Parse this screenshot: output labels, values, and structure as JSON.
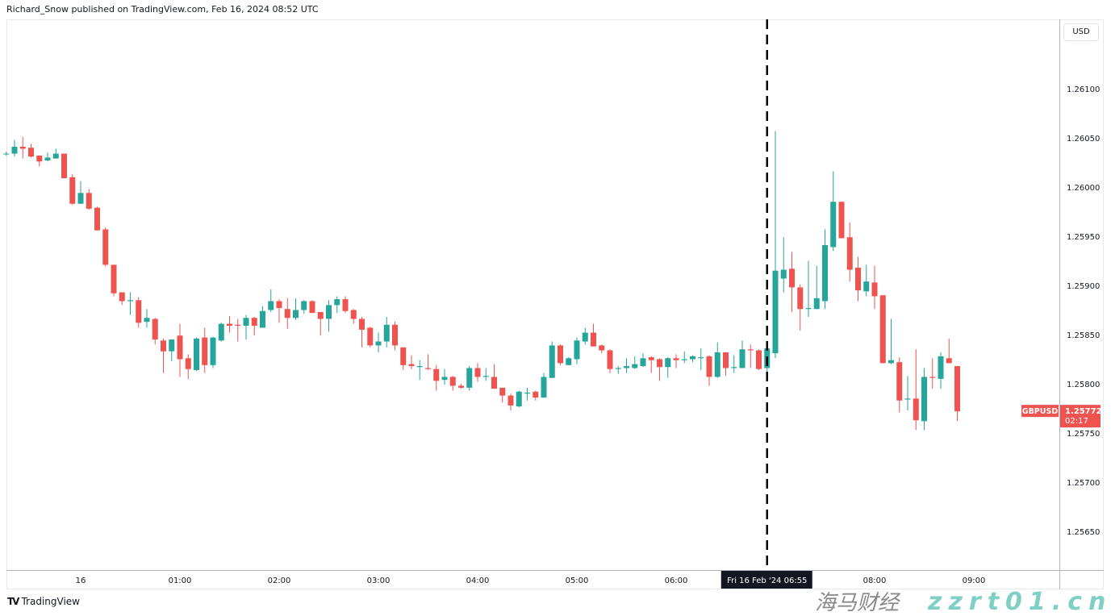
{
  "header": {
    "publisher": "Richard_Snow published on TradingView.com, Feb 16, 2024 08:52 UTC"
  },
  "currency_button": "USD",
  "footer": {
    "logo_text": "TradingView"
  },
  "watermark": {
    "text": "海马财经",
    "url": "zzrt01.cn"
  },
  "colors": {
    "up": "#26a69a",
    "down": "#ef5350",
    "crosshair": "#000000"
  },
  "chart_data": {
    "type": "candlestick",
    "symbol": "GBPUSD",
    "interval": "5m",
    "last_price": "1.25772",
    "countdown": "02:17",
    "crosshair_label": "Fri 16 Feb '24   06:55",
    "crosshair_time": "06:55",
    "y_ticks": [
      "1.26100",
      "1.26050",
      "1.26000",
      "1.25950",
      "1.25900",
      "1.25850",
      "1.25800",
      "1.25750",
      "1.25700",
      "1.25650"
    ],
    "x_ticks": [
      {
        "label": "16",
        "time": "00:00"
      },
      {
        "label": "01:00",
        "time": "01:00"
      },
      {
        "label": "02:00",
        "time": "02:00"
      },
      {
        "label": "03:00",
        "time": "03:00"
      },
      {
        "label": "04:00",
        "time": "04:00"
      },
      {
        "label": "05:00",
        "time": "05:00"
      },
      {
        "label": "06:00",
        "time": "06:00"
      },
      {
        "label": "08:00",
        "time": "08:00"
      },
      {
        "label": "09:00",
        "time": "09:00"
      }
    ],
    "candles_columns": [
      "time",
      "open",
      "high",
      "low",
      "close"
    ],
    "candles": [
      [
        "23:15",
        1.26034,
        1.26036,
        1.26032,
        1.26034
      ],
      [
        "23:20",
        1.26034,
        1.26048,
        1.26031,
        1.26041
      ],
      [
        "23:25",
        1.26041,
        1.26051,
        1.26029,
        1.26039
      ],
      [
        "23:30",
        1.2604,
        1.26044,
        1.2603,
        1.26031
      ],
      [
        "23:35",
        1.26032,
        1.26032,
        1.26021,
        1.26026
      ],
      [
        "23:40",
        1.26027,
        1.26035,
        1.26026,
        1.2603
      ],
      [
        "23:45",
        1.26029,
        1.26039,
        1.26029,
        1.26034
      ],
      [
        "23:50",
        1.26034,
        1.26034,
        1.26009,
        1.26009
      ],
      [
        "23:55",
        1.2601,
        1.26013,
        1.25982,
        1.25983
      ],
      [
        "00:00",
        1.25983,
        1.26006,
        1.25983,
        1.25994
      ],
      [
        "00:05",
        1.25994,
        1.25998,
        1.25977,
        1.25978
      ],
      [
        "00:10",
        1.25979,
        1.2598,
        1.25956,
        1.25956
      ],
      [
        "00:15",
        1.25957,
        1.25959,
        1.25919,
        1.25921
      ],
      [
        "00:20",
        1.25921,
        1.25921,
        1.25889,
        1.25892
      ],
      [
        "00:25",
        1.25893,
        1.25893,
        1.2588,
        1.25884
      ],
      [
        "00:30",
        1.25884,
        1.25893,
        1.2587,
        1.25885
      ],
      [
        "00:35",
        1.25885,
        1.25888,
        1.25857,
        1.25862
      ],
      [
        "00:40",
        1.25863,
        1.25876,
        1.25857,
        1.25867
      ],
      [
        "00:45",
        1.25866,
        1.25867,
        1.2584,
        1.25845
      ],
      [
        "00:50",
        1.25844,
        1.25846,
        1.25811,
        1.25833
      ],
      [
        "00:55",
        1.25833,
        1.25845,
        1.25823,
        1.25845
      ],
      [
        "01:00",
        1.25849,
        1.25861,
        1.25807,
        1.25825
      ],
      [
        "01:05",
        1.25826,
        1.2583,
        1.25805,
        1.25815
      ],
      [
        "01:10",
        1.25814,
        1.25847,
        1.25813,
        1.25846
      ],
      [
        "01:15",
        1.25847,
        1.25857,
        1.25811,
        1.25819
      ],
      [
        "01:20",
        1.25819,
        1.25848,
        1.25816,
        1.25847
      ],
      [
        "01:25",
        1.25844,
        1.25862,
        1.25843,
        1.25861
      ],
      [
        "01:30",
        1.25861,
        1.25869,
        1.25852,
        1.25859
      ],
      [
        "01:35",
        1.2586,
        1.25866,
        1.25843,
        1.25859
      ],
      [
        "01:40",
        1.25859,
        1.2587,
        1.25845,
        1.25867
      ],
      [
        "01:45",
        1.25867,
        1.25868,
        1.25849,
        1.25859
      ],
      [
        "01:50",
        1.25857,
        1.25879,
        1.25857,
        1.25874
      ],
      [
        "01:55",
        1.25875,
        1.25896,
        1.25873,
        1.25884
      ],
      [
        "02:00",
        1.25884,
        1.25886,
        1.25862,
        1.25877
      ],
      [
        "02:05",
        1.25876,
        1.25887,
        1.25856,
        1.25867
      ],
      [
        "02:10",
        1.25867,
        1.25887,
        1.25865,
        1.25875
      ],
      [
        "02:15",
        1.25875,
        1.25885,
        1.25871,
        1.25884
      ],
      [
        "02:20",
        1.25884,
        1.25885,
        1.25872,
        1.25872
      ],
      [
        "02:25",
        1.25873,
        1.25873,
        1.25849,
        1.25866
      ],
      [
        "02:30",
        1.25866,
        1.25885,
        1.25853,
        1.2588
      ],
      [
        "02:35",
        1.2588,
        1.25889,
        1.25872,
        1.25886
      ],
      [
        "02:40",
        1.25886,
        1.25889,
        1.25872,
        1.25874
      ],
      [
        "02:45",
        1.25875,
        1.25876,
        1.25861,
        1.25866
      ],
      [
        "02:50",
        1.25866,
        1.25868,
        1.25837,
        1.25855
      ],
      [
        "02:55",
        1.25857,
        1.25858,
        1.25837,
        1.25839
      ],
      [
        "03:00",
        1.25839,
        1.25852,
        1.25832,
        1.25843
      ],
      [
        "03:05",
        1.25843,
        1.25868,
        1.25837,
        1.2586
      ],
      [
        "03:10",
        1.2586,
        1.25863,
        1.25834,
        1.25839
      ],
      [
        "03:15",
        1.25837,
        1.25837,
        1.25814,
        1.25819
      ],
      [
        "03:20",
        1.2582,
        1.25829,
        1.25815,
        1.25818
      ],
      [
        "03:25",
        1.25817,
        1.25824,
        1.25804,
        1.25818
      ],
      [
        "03:30",
        1.25816,
        1.2583,
        1.25814,
        1.25815
      ],
      [
        "03:35",
        1.25815,
        1.25819,
        1.25793,
        1.25803
      ],
      [
        "03:40",
        1.25804,
        1.25815,
        1.25799,
        1.25807
      ],
      [
        "03:45",
        1.25807,
        1.25808,
        1.25793,
        1.25798
      ],
      [
        "03:50",
        1.25798,
        1.258,
        1.25795,
        1.25796
      ],
      [
        "03:55",
        1.25796,
        1.25818,
        1.25793,
        1.25816
      ],
      [
        "04:00",
        1.25816,
        1.25821,
        1.25802,
        1.25807
      ],
      [
        "04:05",
        1.25807,
        1.25816,
        1.25803,
        1.25808
      ],
      [
        "04:10",
        1.25807,
        1.2582,
        1.25795,
        1.25795
      ],
      [
        "04:15",
        1.25796,
        1.25796,
        1.25781,
        1.25788
      ],
      [
        "04:20",
        1.25788,
        1.2579,
        1.25773,
        1.25778
      ],
      [
        "04:25",
        1.25777,
        1.25793,
        1.25776,
        1.25792
      ],
      [
        "04:30",
        1.2579,
        1.25796,
        1.25783,
        1.25791
      ],
      [
        "04:35",
        1.25792,
        1.25793,
        1.25783,
        1.25786
      ],
      [
        "04:40",
        1.25786,
        1.25811,
        1.25786,
        1.25807
      ],
      [
        "04:45",
        1.25806,
        1.25843,
        1.25806,
        1.25839
      ],
      [
        "04:50",
        1.25839,
        1.2584,
        1.25819,
        1.25821
      ],
      [
        "04:55",
        1.25819,
        1.25827,
        1.25819,
        1.25826
      ],
      [
        "05:00",
        1.25825,
        1.25847,
        1.2582,
        1.25844
      ],
      [
        "05:05",
        1.25843,
        1.25857,
        1.2584,
        1.25852
      ],
      [
        "05:10",
        1.25852,
        1.25861,
        1.25838,
        1.25838
      ],
      [
        "05:15",
        1.25839,
        1.2584,
        1.25831,
        1.25834
      ],
      [
        "05:20",
        1.25834,
        1.25835,
        1.25811,
        1.25815
      ],
      [
        "05:25",
        1.25815,
        1.25818,
        1.2581,
        1.25816
      ],
      [
        "05:30",
        1.25816,
        1.25826,
        1.25811,
        1.25818
      ],
      [
        "05:35",
        1.25816,
        1.25828,
        1.25815,
        1.2582
      ],
      [
        "05:40",
        1.25818,
        1.25831,
        1.25817,
        1.25826
      ],
      [
        "05:45",
        1.25827,
        1.25828,
        1.25811,
        1.25824
      ],
      [
        "05:50",
        1.25825,
        1.25826,
        1.25803,
        1.25817
      ],
      [
        "05:55",
        1.25817,
        1.25827,
        1.25806,
        1.25826
      ],
      [
        "06:00",
        1.25826,
        1.2583,
        1.25816,
        1.25824
      ],
      [
        "06:05",
        1.25824,
        1.25833,
        1.25821,
        1.25825
      ],
      [
        "06:10",
        1.25825,
        1.25829,
        1.25822,
        1.25828
      ],
      [
        "06:15",
        1.25826,
        1.25836,
        1.25814,
        1.25827
      ],
      [
        "06:20",
        1.25828,
        1.25829,
        1.25798,
        1.25807
      ],
      [
        "06:25",
        1.25807,
        1.25842,
        1.25806,
        1.25832
      ],
      [
        "06:30",
        1.25832,
        1.25832,
        1.25808,
        1.25816
      ],
      [
        "06:35",
        1.25816,
        1.25829,
        1.25811,
        1.25817
      ],
      [
        "06:40",
        1.25816,
        1.25844,
        1.25816,
        1.25835
      ],
      [
        "06:45",
        1.25835,
        1.2584,
        1.25816,
        1.25834
      ],
      [
        "06:50",
        1.25834,
        1.25835,
        1.25814,
        1.25815
      ],
      [
        "06:55",
        1.25816,
        1.25843,
        1.25811,
        1.25836
      ],
      [
        "07:00",
        1.25831,
        1.26057,
        1.25826,
        1.25915
      ],
      [
        "07:05",
        1.25907,
        1.25949,
        1.25893,
        1.25916
      ],
      [
        "07:10",
        1.25917,
        1.25934,
        1.25873,
        1.25898
      ],
      [
        "07:15",
        1.25898,
        1.25901,
        1.25854,
        1.25876
      ],
      [
        "07:20",
        1.25876,
        1.25925,
        1.25868,
        1.25877
      ],
      [
        "07:25",
        1.25876,
        1.2592,
        1.25876,
        1.25887
      ],
      [
        "07:30",
        1.25884,
        1.25957,
        1.25876,
        1.25941
      ],
      [
        "07:35",
        1.25939,
        1.26016,
        1.25935,
        1.25985
      ],
      [
        "07:40",
        1.25985,
        1.25985,
        1.25948,
        1.25948
      ],
      [
        "07:45",
        1.25949,
        1.25964,
        1.25904,
        1.25916
      ],
      [
        "07:50",
        1.25918,
        1.25929,
        1.25884,
        1.25895
      ],
      [
        "07:55",
        1.25894,
        1.25921,
        1.25889,
        1.25904
      ],
      [
        "08:00",
        1.25903,
        1.2592,
        1.25876,
        1.25889
      ],
      [
        "08:05",
        1.2589,
        1.2589,
        1.25821,
        1.25821
      ],
      [
        "08:10",
        1.25821,
        1.25866,
        1.2582,
        1.25824
      ],
      [
        "08:15",
        1.25822,
        1.25827,
        1.25771,
        1.25783
      ],
      [
        "08:20",
        1.25784,
        1.25808,
        1.25773,
        1.25785
      ],
      [
        "08:25",
        1.25785,
        1.25835,
        1.25753,
        1.25763
      ],
      [
        "08:30",
        1.25762,
        1.25816,
        1.25753,
        1.25807
      ],
      [
        "08:35",
        1.25807,
        1.25826,
        1.25795,
        1.25806
      ],
      [
        "08:40",
        1.25805,
        1.25832,
        1.25795,
        1.25828
      ],
      [
        "08:45",
        1.25826,
        1.25846,
        1.25821,
        1.25821
      ],
      [
        "08:50",
        1.25818,
        1.25818,
        1.25762,
        1.25772
      ]
    ]
  }
}
